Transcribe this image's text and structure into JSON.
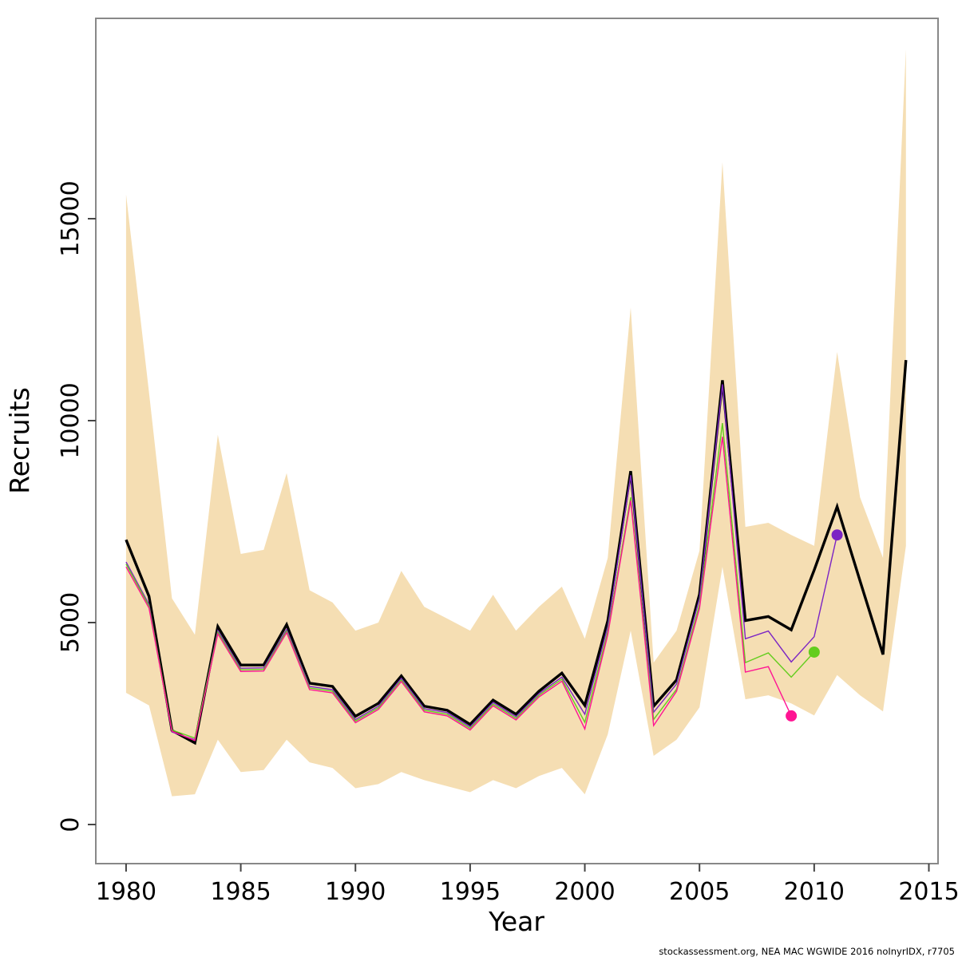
{
  "chart_data": {
    "type": "line",
    "title": "",
    "xlabel": "Year",
    "ylabel": "Recruits",
    "footer": "stockassessment.org, NEA MAC WGWIDE 2016 noInyrIDX, r7705",
    "grid": false,
    "legend": "none",
    "x_ticks": [
      1980,
      1985,
      1990,
      1995,
      2000,
      2005,
      2010,
      2015
    ],
    "y_ticks": [
      0,
      5000,
      10000,
      15000
    ],
    "xlim": [
      1978.68,
      2015.4
    ],
    "ylim": [
      -968,
      19960
    ],
    "frame_color": "#888888",
    "tick_color": "#444444",
    "years": [
      1980,
      1981,
      1982,
      1983,
      1984,
      1985,
      1986,
      1987,
      1988,
      1989,
      1990,
      1991,
      1992,
      1993,
      1994,
      1995,
      1996,
      1997,
      1998,
      1999,
      2000,
      2001,
      2002,
      2003,
      2004,
      2005,
      2006,
      2007,
      2008,
      2009,
      2010,
      2011,
      2012,
      2013,
      2014
    ],
    "band": {
      "name": "confidence-band",
      "color": "#f5deb3",
      "upper": [
        15600,
        10700,
        5600,
        4700,
        9650,
        6700,
        6800,
        8700,
        5800,
        5500,
        4800,
        5000,
        6280,
        5390,
        5100,
        4800,
        5690,
        4800,
        5390,
        5890,
        4600,
        6600,
        12800,
        4010,
        4800,
        6780,
        16400,
        7370,
        7470,
        7170,
        6900,
        11700,
        8100,
        6600,
        19200
      ],
      "lower": [
        3260,
        2950,
        700,
        750,
        2100,
        1300,
        1350,
        2100,
        1540,
        1400,
        900,
        1000,
        1300,
        1100,
        950,
        800,
        1100,
        900,
        1200,
        1400,
        750,
        2230,
        4800,
        1700,
        2100,
        2900,
        6380,
        3100,
        3200,
        3000,
        2700,
        3700,
        3200,
        2800,
        6900
      ]
    },
    "series": [
      {
        "name": "current-assessment",
        "color": "#000000",
        "width": 3.4,
        "endpoint_dot": false,
        "start_year": 1980,
        "values": [
          7050,
          5650,
          2330,
          2020,
          4900,
          3950,
          3950,
          4950,
          3500,
          3420,
          2680,
          3000,
          3680,
          2930,
          2830,
          2480,
          3080,
          2730,
          3300,
          3750,
          2950,
          5040,
          8750,
          2930,
          3580,
          5700,
          11000,
          5050,
          5150,
          4820,
          6300,
          7870,
          6030,
          4210,
          11500
        ]
      },
      {
        "name": "retro-peel-2011",
        "color": "#7b24c4",
        "width": 1.4,
        "endpoint_dot": true,
        "start_year": 1980,
        "values": [
          6500,
          5450,
          2290,
          2100,
          4800,
          3870,
          3880,
          4830,
          3420,
          3340,
          2600,
          2930,
          3620,
          2870,
          2770,
          2420,
          3020,
          2670,
          3240,
          3650,
          2730,
          4900,
          8650,
          2780,
          3480,
          5600,
          10900,
          4600,
          4790,
          4025,
          4650,
          7170
        ]
      },
      {
        "name": "retro-peel-2010",
        "color": "#63cd1e",
        "width": 1.4,
        "endpoint_dot": true,
        "start_year": 1980,
        "values": [
          6450,
          5410,
          2340,
          2140,
          4760,
          3830,
          3840,
          4790,
          3380,
          3300,
          2560,
          2890,
          3580,
          2830,
          2730,
          2380,
          2980,
          2630,
          3200,
          3600,
          2530,
          4780,
          8100,
          2600,
          3350,
          5450,
          9940,
          4010,
          4250,
          3650,
          4270
        ]
      },
      {
        "name": "retro-peel-2009",
        "color": "#ff1493",
        "width": 1.4,
        "endpoint_dot": true,
        "start_year": 1980,
        "values": [
          6380,
          5360,
          2310,
          2080,
          4720,
          3790,
          3800,
          4750,
          3340,
          3260,
          2520,
          2850,
          3540,
          2790,
          2690,
          2340,
          2940,
          2590,
          3160,
          3550,
          2365,
          4700,
          8020,
          2450,
          3300,
          5350,
          9600,
          3775,
          3910,
          2690
        ]
      }
    ]
  }
}
